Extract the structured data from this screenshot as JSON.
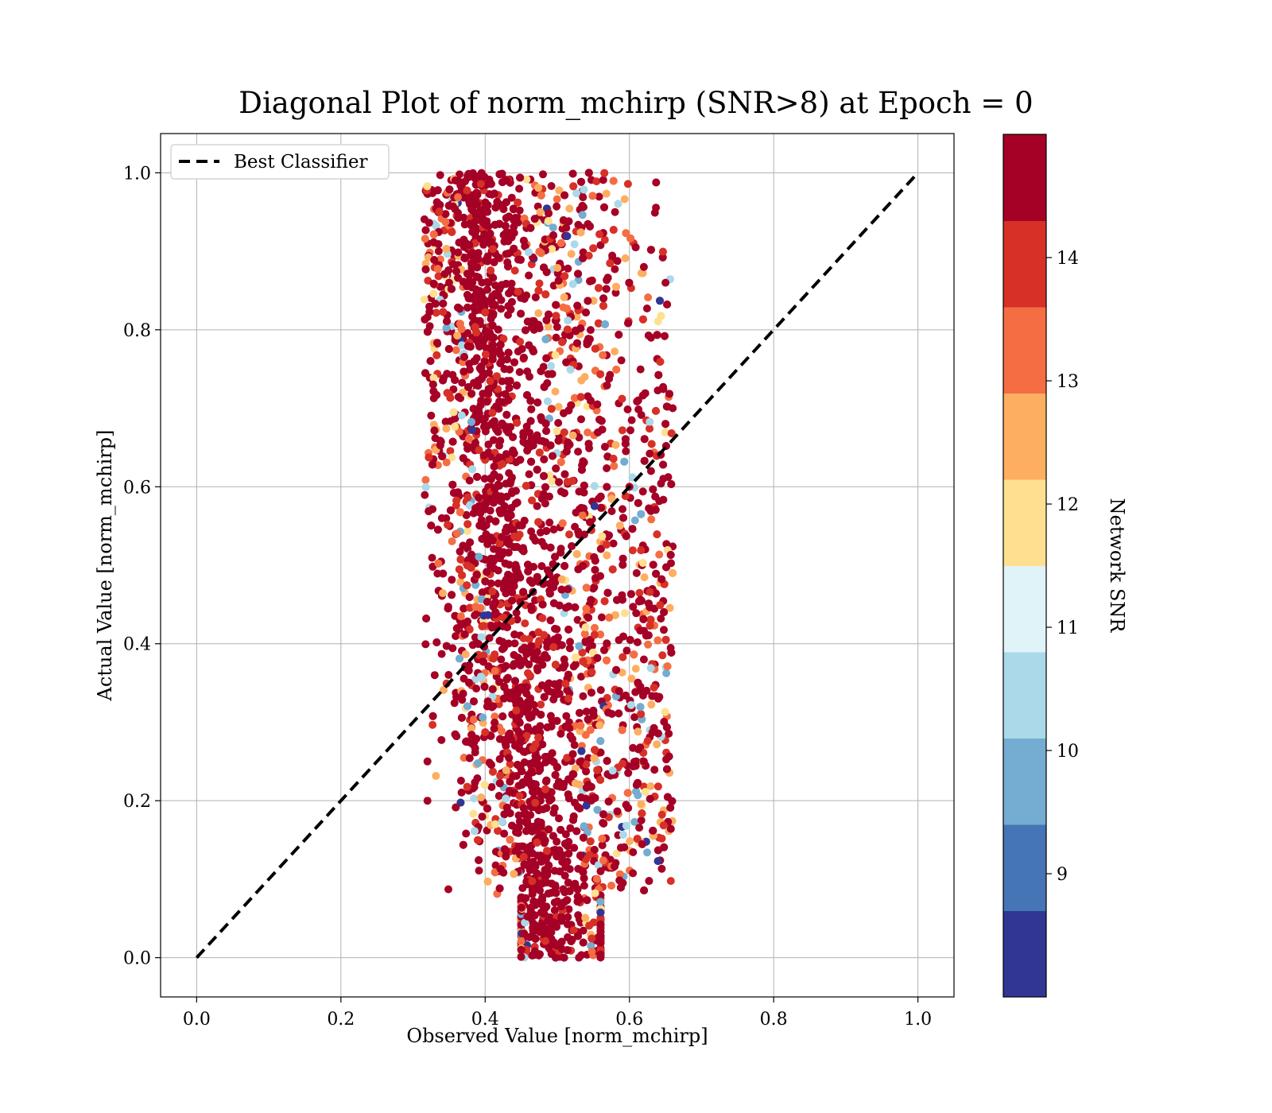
{
  "chart_data": {
    "type": "scatter",
    "title": "Diagonal Plot of norm_mchirp (SNR>8) at Epoch = 0",
    "xlabel": "Observed Value [norm_mchirp]",
    "ylabel": "Actual Value [norm_mchirp]",
    "xlim": [
      -0.05,
      1.05
    ],
    "ylim": [
      -0.05,
      1.05
    ],
    "x_ticks": [
      "0.0",
      "0.2",
      "0.4",
      "0.6",
      "0.8",
      "1.0"
    ],
    "y_ticks": [
      "0.0",
      "0.2",
      "0.4",
      "0.6",
      "0.8",
      "1.0"
    ],
    "grid": true,
    "legend": {
      "placement": "upper-left",
      "entries": [
        "Best Classifier"
      ]
    },
    "reference_line": {
      "name": "Best Classifier",
      "x": [
        0.0,
        1.0
      ],
      "y": [
        0.0,
        1.0
      ],
      "style": "dashed",
      "color": "#000000"
    },
    "series": [
      {
        "type": "scatter-cloud",
        "description_points": "observed vs actual norm_mchirp, colored by network SNR",
        "x_range": [
          0.32,
          0.65
        ],
        "y_range": [
          0.0,
          1.0
        ],
        "x_center_at_y0": 0.5,
        "x_center_at_y1": 0.4,
        "points": [
          [
            0.43,
            0.99
          ],
          [
            0.58,
            0.95
          ],
          [
            0.62,
            0.88
          ],
          [
            0.65,
            0.86
          ],
          [
            0.63,
            0.79
          ],
          [
            0.66,
            0.7
          ],
          [
            0.63,
            0.62
          ],
          [
            0.6,
            0.6
          ],
          [
            0.61,
            0.49
          ],
          [
            0.62,
            0.38
          ],
          [
            0.64,
            0.33
          ],
          [
            0.62,
            0.25
          ],
          [
            0.61,
            0.22
          ],
          [
            0.56,
            0.11
          ],
          [
            0.53,
            0.0
          ],
          [
            0.45,
            0.01
          ],
          [
            0.32,
            0.25
          ],
          [
            0.32,
            0.2
          ],
          [
            0.33,
            0.36
          ],
          [
            0.34,
            0.56
          ],
          [
            0.35,
            0.86
          ],
          [
            0.36,
            0.99
          ]
        ]
      }
    ],
    "colorbar": {
      "label": "Network SNR",
      "range": [
        8,
        15
      ],
      "ticks": [
        "9",
        "10",
        "11",
        "12",
        "13",
        "14"
      ],
      "colors": [
        "#313695",
        "#4575b4",
        "#74add1",
        "#abd9e9",
        "#e0f3f8",
        "#fee090",
        "#fdae61",
        "#f46d43",
        "#d73027",
        "#a50026"
      ]
    }
  }
}
